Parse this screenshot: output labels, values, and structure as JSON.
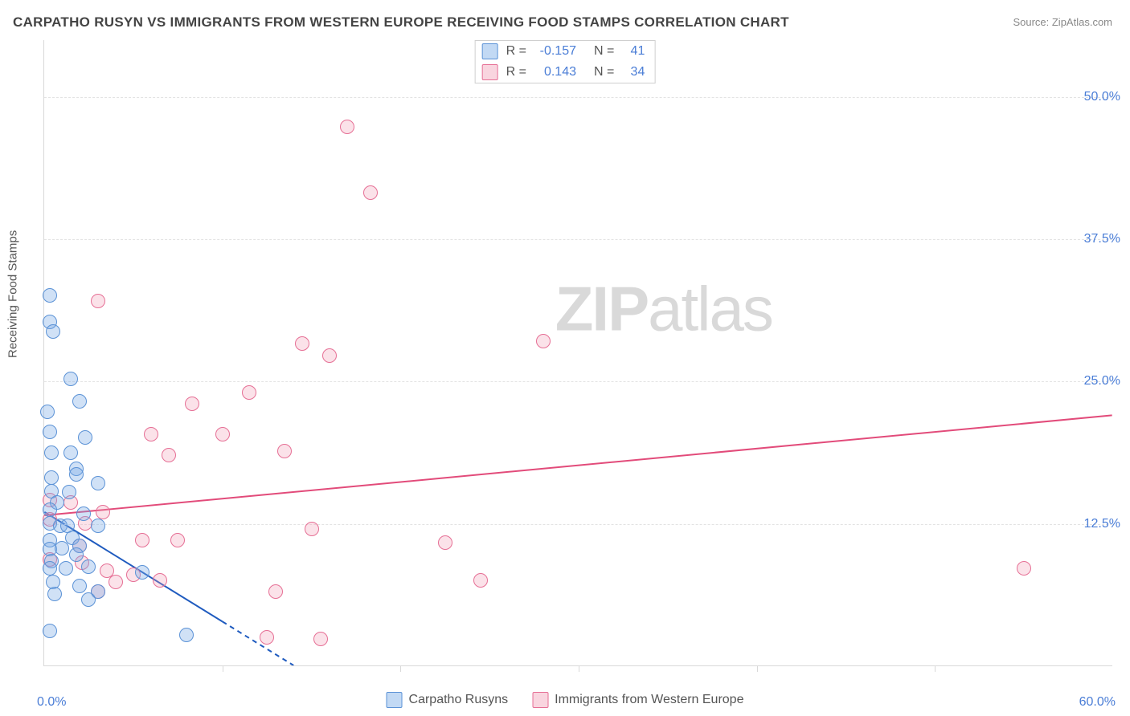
{
  "title": "CARPATHO RUSYN VS IMMIGRANTS FROM WESTERN EUROPE RECEIVING FOOD STAMPS CORRELATION CHART",
  "source": "Source: ZipAtlas.com",
  "watermark": {
    "bold": "ZIP",
    "rest": "atlas"
  },
  "axes": {
    "ylabel": "Receiving Food Stamps",
    "xlim": [
      0,
      60
    ],
    "ylim": [
      0,
      55
    ],
    "xticks_minor": [
      10,
      20,
      30,
      40,
      50
    ],
    "xtick_labels": {
      "min": "0.0%",
      "max": "60.0%"
    },
    "ygrid": [
      12.5,
      25.0,
      37.5,
      50.0
    ],
    "ytick_labels": [
      "12.5%",
      "25.0%",
      "37.5%",
      "50.0%"
    ],
    "grid_color": "#e3e3e3",
    "axis_color": "#d9d9d9",
    "tick_label_color": "#4a7dd6"
  },
  "corr_legend": {
    "rows": [
      {
        "swatch": "blue",
        "r_label": "R =",
        "r": "-0.157",
        "n_label": "N =",
        "n": "41"
      },
      {
        "swatch": "pink",
        "r_label": "R =",
        "r": "0.143",
        "n_label": "N =",
        "n": "34"
      }
    ]
  },
  "series_legend": [
    {
      "swatch": "blue",
      "label": "Carpatho Rusyns"
    },
    {
      "swatch": "pink",
      "label": "Immigrants from Western Europe"
    }
  ],
  "series": {
    "blue": {
      "color_fill": "rgba(120,170,230,0.35)",
      "color_stroke": "#5b92d6",
      "marker_size": 18,
      "trend": {
        "x1": 0,
        "y1": 13.5,
        "x2": 14,
        "y2": 0,
        "color": "#1f5bbf",
        "width": 2,
        "dash_after_x": 10
      },
      "points": [
        [
          0.3,
          32.5
        ],
        [
          0.3,
          30.2
        ],
        [
          0.5,
          29.3
        ],
        [
          1.5,
          25.2
        ],
        [
          0.2,
          22.3
        ],
        [
          2.0,
          23.2
        ],
        [
          0.3,
          20.5
        ],
        [
          2.3,
          20.0
        ],
        [
          0.4,
          18.7
        ],
        [
          1.5,
          18.7
        ],
        [
          1.8,
          17.3
        ],
        [
          0.4,
          16.5
        ],
        [
          1.8,
          16.8
        ],
        [
          3.0,
          16.0
        ],
        [
          0.4,
          15.3
        ],
        [
          1.4,
          15.2
        ],
        [
          0.7,
          14.3
        ],
        [
          0.3,
          13.7
        ],
        [
          2.2,
          13.3
        ],
        [
          0.3,
          12.5
        ],
        [
          0.9,
          12.3
        ],
        [
          1.3,
          12.3
        ],
        [
          3.0,
          12.3
        ],
        [
          0.3,
          11.0
        ],
        [
          1.6,
          11.2
        ],
        [
          0.3,
          10.2
        ],
        [
          1.0,
          10.3
        ],
        [
          2.0,
          10.5
        ],
        [
          0.4,
          9.2
        ],
        [
          1.8,
          9.7
        ],
        [
          0.3,
          8.5
        ],
        [
          1.2,
          8.5
        ],
        [
          2.5,
          8.7
        ],
        [
          5.5,
          8.2
        ],
        [
          0.5,
          7.3
        ],
        [
          2.0,
          7.0
        ],
        [
          0.6,
          6.3
        ],
        [
          3.0,
          6.5
        ],
        [
          0.3,
          3.0
        ],
        [
          8.0,
          2.7
        ],
        [
          2.5,
          5.8
        ]
      ]
    },
    "pink": {
      "color_fill": "rgba(240,150,175,0.28)",
      "color_stroke": "#e66f95",
      "marker_size": 18,
      "trend": {
        "x1": 0,
        "y1": 13.2,
        "x2": 60,
        "y2": 22.0,
        "color": "#e24b7a",
        "width": 2
      },
      "points": [
        [
          17.0,
          47.3
        ],
        [
          18.3,
          41.5
        ],
        [
          3.0,
          32.0
        ],
        [
          28.0,
          28.5
        ],
        [
          14.5,
          28.3
        ],
        [
          16.0,
          27.2
        ],
        [
          8.3,
          23.0
        ],
        [
          11.5,
          24.0
        ],
        [
          6.0,
          20.3
        ],
        [
          10.0,
          20.3
        ],
        [
          13.5,
          18.8
        ],
        [
          7.0,
          18.5
        ],
        [
          15.0,
          12.0
        ],
        [
          0.3,
          14.5
        ],
        [
          1.5,
          14.3
        ],
        [
          3.3,
          13.5
        ],
        [
          5.5,
          11.0
        ],
        [
          7.5,
          11.0
        ],
        [
          22.5,
          10.8
        ],
        [
          24.5,
          7.5
        ],
        [
          0.3,
          12.8
        ],
        [
          2.0,
          10.5
        ],
        [
          3.5,
          8.3
        ],
        [
          5.0,
          8.0
        ],
        [
          4.0,
          7.3
        ],
        [
          6.5,
          7.5
        ],
        [
          0.3,
          9.3
        ],
        [
          2.1,
          9.0
        ],
        [
          3.0,
          6.5
        ],
        [
          13.0,
          6.5
        ],
        [
          12.5,
          2.5
        ],
        [
          15.5,
          2.3
        ],
        [
          55.0,
          8.5
        ],
        [
          2.3,
          12.5
        ]
      ]
    }
  }
}
